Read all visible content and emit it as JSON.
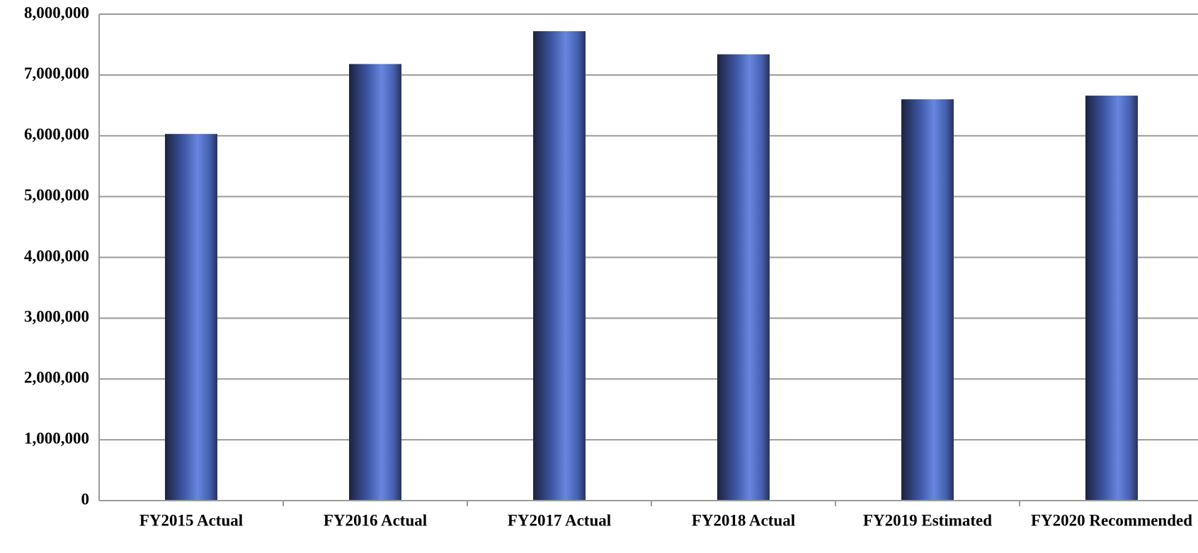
{
  "chart_data": {
    "type": "bar",
    "categories": [
      "FY2015 Actual",
      "FY2016 Actual",
      "FY2017 Actual",
      "FY2018 Actual",
      "FY2019 Estimated",
      "FY2020 Recommended"
    ],
    "values": [
      6030000,
      7180000,
      7720000,
      7340000,
      6600000,
      6660000
    ],
    "color": "#4a66c0",
    "ylim": [
      0,
      8000000
    ],
    "yticks": [
      0,
      {
        "value": 1000000,
        "label": "1,000,000"
      },
      {
        "value": 2000000,
        "label": "2,000,000"
      },
      {
        "value": 3000000,
        "label": "3,000,000"
      },
      {
        "value": 4000000,
        "label": "4,000,000"
      },
      {
        "value": 5000000,
        "label": "5,000,000"
      },
      {
        "value": 6000000,
        "label": "6,000,000"
      },
      {
        "value": 7000000,
        "label": "7,000,000"
      },
      {
        "value": 8000000,
        "label": "8,000,000"
      }
    ],
    "grid": true
  }
}
